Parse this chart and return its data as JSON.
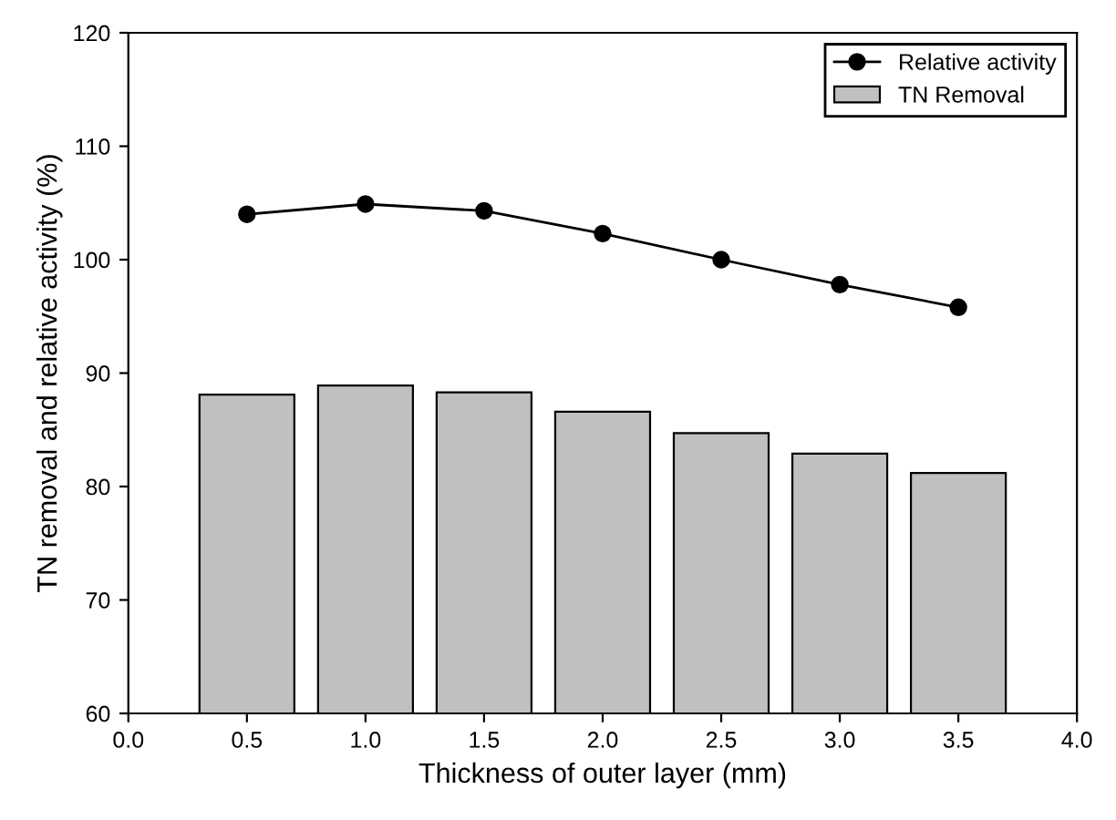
{
  "chart_data": {
    "type": "bar",
    "xlabel": "Thickness of outer layer (mm)",
    "ylabel": "TN removal and relative activity (%)",
    "x": [
      0.5,
      1.0,
      1.5,
      2.0,
      2.5,
      3.0,
      3.5
    ],
    "series": [
      {
        "name": "Relative activity",
        "type": "line",
        "color": "#000000",
        "marker": "circle",
        "line_style": "solid",
        "values": [
          104.0,
          104.9,
          104.3,
          102.3,
          100.0,
          97.8,
          95.8
        ]
      },
      {
        "name": "TN Removal",
        "color": "#c0c0c0",
        "values": [
          88.1,
          88.9,
          88.3,
          86.6,
          84.7,
          82.9,
          81.2
        ]
      }
    ],
    "xlim": [
      0.0,
      4.0
    ],
    "xticks": [
      {
        "value": 0,
        "label": "0.0"
      },
      {
        "value": 0.5,
        "label": "0.5"
      },
      {
        "value": 1,
        "label": "1.0"
      },
      {
        "value": 1.5,
        "label": "1.5"
      },
      {
        "value": 2,
        "label": "2.0"
      },
      {
        "value": 2.5,
        "label": "2.5"
      },
      {
        "value": 3,
        "label": "3.0"
      },
      {
        "value": 3.5,
        "label": "3.5"
      },
      {
        "value": 4,
        "label": "4.0"
      }
    ],
    "ylim": [
      60,
      120
    ],
    "yticks": [
      60,
      70,
      80,
      90,
      100,
      110,
      120
    ],
    "grid": false,
    "legend": "top right"
  }
}
